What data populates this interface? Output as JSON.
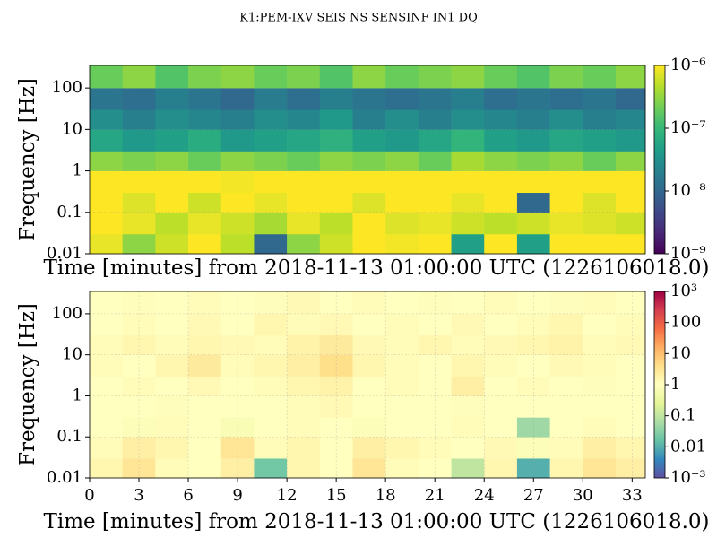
{
  "chart_data": [
    {
      "type": "heatmap",
      "title": "K1:PEM-IXV SEIS NS SENSINF IN1 DQ",
      "xlabel": "Time [minutes] from 2018-11-13 01:00:00 UTC (1226106018.0)",
      "ylabel": "Frequency [Hz]",
      "x_bins": [
        0,
        2,
        4,
        6,
        8,
        10,
        12,
        14,
        16,
        18,
        20,
        22,
        24,
        26,
        28,
        30,
        32,
        33.8
      ],
      "y_bins": [
        0.01,
        0.03,
        0.1,
        0.3,
        1,
        3,
        10,
        30,
        100,
        350
      ],
      "z": [
        [
          8e-07,
          3e-07,
          6e-07,
          1e-06,
          5e-07,
          1e-08,
          3e-07,
          6e-07,
          1e-06,
          9e-07,
          1e-06,
          5e-08,
          1e-06,
          5e-08,
          1e-06,
          1e-06,
          1e-06
        ],
        [
          1e-06,
          8e-07,
          5e-07,
          8e-07,
          6e-07,
          4e-07,
          8e-07,
          5e-07,
          1e-06,
          7e-07,
          8e-07,
          6e-07,
          5e-07,
          6e-07,
          8e-07,
          7e-07,
          6e-07
        ],
        [
          1e-06,
          7e-07,
          1e-06,
          6e-07,
          1e-06,
          8e-07,
          1e-06,
          1e-06,
          7e-07,
          1e-06,
          1e-06,
          8e-07,
          1e-06,
          1e-08,
          1e-06,
          7e-07,
          1e-06
        ],
        [
          1e-06,
          1e-06,
          1e-06,
          1e-06,
          9e-07,
          1e-06,
          1e-06,
          1e-06,
          1e-06,
          1e-06,
          1e-06,
          1e-06,
          1e-06,
          1e-06,
          1e-06,
          1e-06,
          1e-06
        ],
        [
          3e-07,
          2.5e-07,
          3e-07,
          2e-07,
          3e-07,
          2.5e-07,
          2e-07,
          3e-07,
          2.5e-07,
          3e-07,
          2e-07,
          4e-07,
          3e-07,
          2.5e-07,
          3e-07,
          2e-07,
          3e-07
        ],
        [
          6e-08,
          4e-08,
          5e-08,
          7e-08,
          4e-08,
          5e-08,
          6e-08,
          8e-08,
          5e-08,
          4e-08,
          6e-08,
          9e-08,
          5e-08,
          4e-08,
          6e-08,
          5e-08,
          4e-08
        ],
        [
          3e-08,
          2e-08,
          3e-08,
          2.5e-08,
          2e-08,
          3e-08,
          2.5e-08,
          4e-08,
          2e-08,
          3e-08,
          2e-08,
          3e-08,
          2.5e-08,
          2e-08,
          3e-08,
          2e-08,
          2.5e-08
        ],
        [
          1.5e-08,
          1.2e-08,
          2e-08,
          1.5e-08,
          1e-08,
          1.8e-08,
          1.2e-08,
          2e-08,
          1.5e-08,
          1.2e-08,
          1.5e-08,
          2e-08,
          1.2e-08,
          1.5e-08,
          1.2e-08,
          1.5e-08,
          1e-08
        ],
        [
          2e-07,
          3e-07,
          1.5e-07,
          2.5e-07,
          3e-07,
          2e-07,
          2.5e-07,
          1.5e-07,
          3e-07,
          2e-07,
          2.5e-07,
          3e-07,
          2e-07,
          1.5e-07,
          2.5e-07,
          2e-07,
          3e-07
        ]
      ],
      "colormap": "viridis",
      "log_color": true,
      "clim": [
        1e-09,
        1e-06
      ],
      "cticks": [
        {
          "value": 1e-09,
          "label": "10⁻⁹"
        },
        {
          "value": 1e-08,
          "label": "10⁻⁸"
        },
        {
          "value": 1e-07,
          "label": "10⁻⁷"
        },
        {
          "value": 1e-06,
          "label": "10⁻⁶"
        }
      ],
      "log_y": true,
      "xlim": [
        0,
        33.8
      ],
      "ylim": [
        0.01,
        350
      ],
      "yticks": [
        0.01,
        0.1,
        1,
        10,
        100
      ],
      "grid": true
    },
    {
      "type": "heatmap",
      "xlabel": "Time [minutes] from 2018-11-13 01:00:00 UTC (1226106018.0)",
      "ylabel": "Frequency [Hz]",
      "x_bins": [
        0,
        2,
        4,
        6,
        8,
        10,
        12,
        14,
        16,
        18,
        20,
        22,
        24,
        26,
        28,
        30,
        32,
        33.8
      ],
      "y_bins": [
        0.01,
        0.03,
        0.1,
        0.3,
        1,
        3,
        10,
        30,
        100,
        350
      ],
      "z": [
        [
          1.5,
          3,
          1.2,
          1,
          2,
          0.02,
          1.5,
          1,
          3,
          1.2,
          1,
          0.1,
          1.5,
          0.01,
          1.5,
          3,
          2
        ],
        [
          1.2,
          2,
          1.5,
          1,
          3,
          1.2,
          1.5,
          1,
          2,
          1.5,
          1.2,
          1,
          1.3,
          0.8,
          1.2,
          2,
          1.5
        ],
        [
          1,
          0.8,
          1.2,
          1,
          0.7,
          1,
          1.2,
          1,
          0.8,
          1,
          1,
          1.2,
          1,
          0.05,
          1,
          1.2,
          1
        ],
        [
          1,
          1,
          1.1,
          1,
          1,
          1,
          1.2,
          1.3,
          1,
          1,
          1,
          1.1,
          1,
          1,
          1,
          1,
          1
        ],
        [
          1,
          1.2,
          1,
          1.3,
          1,
          1.2,
          1.5,
          1.8,
          1,
          1.2,
          1,
          2,
          1,
          1.2,
          1,
          1.1,
          1
        ],
        [
          1.2,
          1,
          1.5,
          2.5,
          1.2,
          1.5,
          2,
          4,
          1.5,
          1.2,
          1,
          1.5,
          1.2,
          1,
          1.3,
          1.2,
          1
        ],
        [
          1.2,
          1.5,
          1.2,
          1.5,
          1.3,
          1.2,
          1.8,
          2.5,
          1.3,
          1.2,
          1.5,
          1.2,
          1.3,
          1.5,
          1.8,
          1.2,
          1.3
        ],
        [
          1,
          1.2,
          1,
          1.3,
          1,
          1.5,
          1.2,
          1.3,
          1,
          1.2,
          1,
          1.3,
          1,
          1.2,
          1.5,
          1,
          1.2
        ],
        [
          1,
          1.1,
          1,
          1.2,
          1,
          1.1,
          1.3,
          1,
          1.2,
          1,
          1.1,
          1,
          1.2,
          1,
          1.1,
          1.2,
          1
        ]
      ],
      "colormap": "Spectral_r",
      "log_color": true,
      "clim": [
        0.001,
        1000
      ],
      "cticks": [
        {
          "value": 0.001,
          "label": "10⁻³"
        },
        0.01,
        0.1,
        1,
        10,
        100,
        {
          "value": 1000,
          "label": "10³"
        }
      ],
      "log_y": true,
      "xlim": [
        0,
        33.8
      ],
      "ylim": [
        0.01,
        350
      ],
      "yticks": [
        0.01,
        0.1,
        1,
        10,
        100
      ],
      "xticks": [
        0,
        3,
        6,
        9,
        12,
        15,
        18,
        21,
        24,
        27,
        30,
        33
      ],
      "grid": true
    }
  ]
}
